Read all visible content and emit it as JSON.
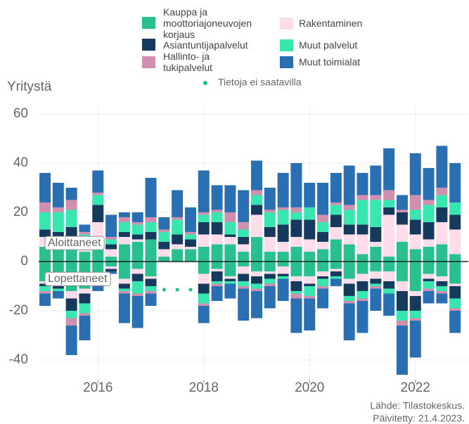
{
  "chart_data": {
    "type": "diverging-stacked-bar",
    "y_label": "Yritystä",
    "source": "Lähde: Tilastokeskus.",
    "updated": "Päivitetty: 21.4.2023.",
    "missing_label": "Tietoja ei saatavilla",
    "missing_color": "#1fbf8a",
    "annotations": {
      "starts": "Aloittaneet",
      "closures": "Lopettaneet"
    },
    "x": [
      2015,
      2015.25,
      2015.5,
      2015.75,
      2016,
      2016.25,
      2016.5,
      2016.75,
      2017,
      2017.25,
      2017.5,
      2017.75,
      2018,
      2018.25,
      2018.5,
      2018.75,
      2019,
      2019.25,
      2019.5,
      2019.75,
      2020,
      2020.25,
      2020.5,
      2020.75,
      2021,
      2021.25,
      2021.5,
      2021.75,
      2022,
      2022.25,
      2022.5,
      2022.75
    ],
    "xlim": [
      2014.88,
      2023.0
    ],
    "xticks": [
      2016,
      2018,
      2020,
      2022
    ],
    "ylim": [
      -48,
      63.4
    ],
    "yticks": [
      -40,
      -20,
      0,
      20,
      40,
      60
    ],
    "grid": true,
    "series": [
      {
        "name": "Kauppa ja moottoriajoneuvojen korjaus",
        "color": "#27c08e",
        "starts": [
          6,
          5,
          6,
          4,
          6,
          2,
          7,
          8,
          9,
          2,
          5,
          5,
          6,
          7,
          7,
          4,
          10,
          4,
          4,
          6,
          4,
          5,
          9,
          7,
          3,
          6,
          2,
          8,
          5,
          6,
          7,
          3
        ],
        "closures": [
          -8,
          -9,
          -12,
          -11,
          -5,
          -2,
          -7,
          -3,
          -6,
          null,
          null,
          null,
          -5,
          -3,
          -6,
          -2,
          -4,
          -4,
          -2,
          -6,
          -6,
          -4,
          -3,
          -7,
          -5,
          -4,
          -4,
          -8,
          -12,
          -5,
          -6,
          -9
        ]
      },
      {
        "name": "Rakentaminen",
        "color": "#ffdcea",
        "starts": [
          4,
          4,
          4,
          3,
          10,
          3,
          3,
          1,
          0,
          3,
          2,
          1,
          5,
          4,
          3,
          3,
          9,
          6,
          4,
          4,
          5,
          3,
          5,
          4,
          8,
          2,
          17,
          7,
          6,
          3,
          9,
          10
        ],
        "closures": [
          -1,
          -1,
          -3,
          -2,
          -1,
          -1,
          -2,
          -2,
          -1,
          null,
          null,
          null,
          -4,
          -1,
          -1,
          -3,
          -2,
          -1,
          -3,
          -2,
          -3,
          -2,
          -1,
          -2,
          -3,
          -3,
          -4,
          -4,
          -2,
          -2,
          -2,
          -1
        ]
      },
      {
        "name": "Asiantuntijapalvelut",
        "color": "#153a5e",
        "starts": [
          3,
          3,
          4,
          3,
          7,
          2,
          2,
          2,
          3,
          3,
          4,
          3,
          5,
          5,
          1,
          3,
          4,
          4,
          7,
          7,
          8,
          4,
          5,
          4,
          4,
          6,
          3,
          5,
          6,
          7,
          6,
          6
        ],
        "closures": [
          -1,
          -1,
          -5,
          -4,
          -2,
          -1,
          -2,
          -3,
          -3,
          null,
          null,
          null,
          -4,
          -4,
          -1,
          -3,
          -3,
          -2,
          -1,
          -4,
          -1,
          -1,
          -2,
          -5,
          -4,
          -2,
          -3,
          -8,
          -6,
          -1,
          -2,
          -5
        ]
      },
      {
        "name": "Muut palvelut",
        "color": "#38e6b0",
        "starts": [
          7,
          8,
          7,
          1,
          4,
          2,
          4,
          4,
          4,
          4,
          6,
          2,
          3,
          4,
          5,
          3,
          4,
          6,
          6,
          3,
          5,
          4,
          4,
          6,
          10,
          11,
          3,
          0,
          4,
          7,
          5,
          5
        ],
        "closures": [
          -2,
          -1,
          -3,
          -4,
          -1,
          0,
          -1,
          -5,
          -2,
          null,
          null,
          null,
          -4,
          -1,
          -1,
          -2,
          -2,
          -2,
          -1,
          -1,
          -4,
          -3,
          -1,
          -2,
          -3,
          -1,
          -2,
          -4,
          -3,
          -3,
          -2,
          -4
        ]
      },
      {
        "name": "Hallinto- ja tukipalvelut",
        "color": "#d18fb0",
        "starts": [
          4,
          2,
          4,
          1,
          1,
          1,
          2,
          1,
          2,
          1,
          1,
          1,
          1,
          1,
          4,
          3,
          2,
          1,
          1,
          2,
          0,
          3,
          1,
          2,
          2,
          2,
          4,
          1,
          6,
          2,
          3,
          0
        ],
        "closures": [
          -1,
          0,
          -3,
          -1,
          -1,
          0,
          -1,
          -1,
          -1,
          null,
          null,
          null,
          -1,
          -1,
          0,
          -1,
          -1,
          -1,
          0,
          -2,
          -1,
          -1,
          0,
          -1,
          -1,
          -1,
          0,
          -2,
          -1,
          -1,
          -1,
          -1
        ]
      },
      {
        "name": "Muut toimialat",
        "color": "#2a6fb2",
        "starts": [
          12,
          10,
          5,
          3,
          9,
          9,
          2,
          4,
          16,
          5,
          11,
          10,
          17,
          10,
          11,
          13,
          12,
          9,
          14,
          18,
          10,
          13,
          12,
          16,
          9,
          12,
          17,
          6,
          17,
          13,
          17,
          16
        ],
        "closures": [
          -5,
          -3,
          -12,
          -10,
          -2,
          -1,
          -12,
          -13,
          -5,
          null,
          null,
          null,
          -7,
          -6,
          -6,
          -13,
          -11,
          -9,
          -9,
          -14,
          -13,
          -8,
          -3,
          -15,
          -13,
          -9,
          -9,
          -20,
          -15,
          -5,
          -4,
          -9
        ]
      }
    ]
  }
}
